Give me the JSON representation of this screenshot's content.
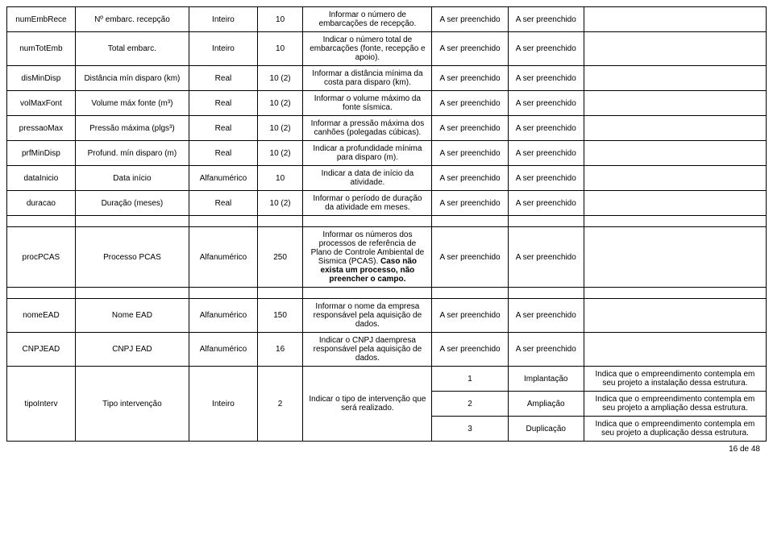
{
  "fill": "A ser preenchido",
  "rows_main": [
    {
      "c1": "numEmbRece",
      "c2": "Nº embarc. recepção",
      "c3": "Inteiro",
      "c4": "10",
      "c5": "Informar o número de embarcações de recepção."
    },
    {
      "c1": "numTotEmb",
      "c2": "Total embarc.",
      "c3": "Inteiro",
      "c4": "10",
      "c5": "Indicar o número total de embarcações (fonte, recepção e apoio)."
    },
    {
      "c1": "disMinDisp",
      "c2": "Distância mín disparo (km)",
      "c3": "Real",
      "c4": "10 (2)",
      "c5": "Informar a distância mínima da costa para disparo (km)."
    },
    {
      "c1": "volMaxFont",
      "c2": "Volume máx fonte (m³)",
      "c3": "Real",
      "c4": "10 (2)",
      "c5": "Informar o volume máximo da fonte sísmica."
    },
    {
      "c1": "pressaoMax",
      "c2": "Pressão máxima (plgs³)",
      "c3": "Real",
      "c4": "10 (2)",
      "c5": "Informar a pressão máxima dos canhões (polegadas cúbicas)."
    },
    {
      "c1": "prfMinDisp",
      "c2": "Profund. mín disparo (m)",
      "c3": "Real",
      "c4": "10 (2)",
      "c5": "Indicar a profundidade mínima para disparo (m)."
    },
    {
      "c1": "dataInicio",
      "c2": "Data início",
      "c3": "Alfanumérico",
      "c4": "10",
      "c5": "Indicar a data de início da atividade."
    },
    {
      "c1": "duracao",
      "c2": "Duração (meses)",
      "c3": "Real",
      "c4": "10 (2)",
      "c5": "Informar o período de duração da atividade em meses."
    }
  ],
  "procPCAS": {
    "c1": "procPCAS",
    "c2": "Processo PCAS",
    "c3": "Alfanumérico",
    "c4": "250",
    "c5_pre": "Informar os números dos processos de referência de Plano de Controle Ambiental de Sismica (PCAS). ",
    "c5_bold": "Caso não exista um processo, não preencher o campo."
  },
  "nomeEAD": {
    "c1": "nomeEAD",
    "c2": "Nome EAD",
    "c3": "Alfanumérico",
    "c4": "150",
    "c5": "Informar o nome da empresa responsável pela aquisição de dados."
  },
  "CNPJEAD": {
    "c1": "CNPJEAD",
    "c2": "CNPJ EAD",
    "c3": "Alfanumérico",
    "c4": "16",
    "c5": "Indicar o CNPJ daempresa responsável pela aquisição de dados."
  },
  "tipoInterv": {
    "c1": "tipoInterv",
    "c2": "Tipo intervenção",
    "c3": "Inteiro",
    "c4": "2",
    "c5": "Indicar o tipo de intervenção que será realizado.",
    "opts": [
      {
        "n": "1",
        "label": "Implantação",
        "desc": "Indica que o empreendimento contempla em seu projeto a instalação dessa estrutura."
      },
      {
        "n": "2",
        "label": "Ampliação",
        "desc": "Indica que o empreendimento contempla em seu projeto a ampliação dessa estrutura."
      },
      {
        "n": "3",
        "label": "Duplicação",
        "desc": "Indica que o empreendimento contempla em seu projeto a duplicação dessa estrutura."
      }
    ]
  },
  "footer": "16 de 48"
}
